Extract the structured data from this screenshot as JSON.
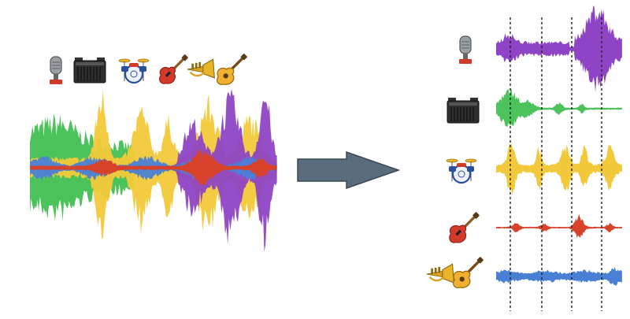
{
  "diagram": {
    "type": "audio-source-separation",
    "input": {
      "name": "mixed-waveform",
      "instrument_icons": [
        "microphone-icon",
        "amplifier-icon",
        "drum-kit-icon",
        "electric-guitar-icon",
        "trumpet-icon",
        "acoustic-guitar-icon"
      ]
    },
    "arrow": {
      "color": "#5a6b7b"
    },
    "outputs": [
      {
        "name": "vocals-track",
        "icons": [
          "microphone-icon"
        ],
        "color": "#8e44c4"
      },
      {
        "name": "bass-track",
        "icons": [
          "amplifier-icon"
        ],
        "color": "#4cc25a"
      },
      {
        "name": "drums-track",
        "icons": [
          "drum-kit-icon"
        ],
        "color": "#f2c93a"
      },
      {
        "name": "guitar-track",
        "icons": [
          "electric-guitar-icon"
        ],
        "color": "#d8422a"
      },
      {
        "name": "other-track",
        "icons": [
          "trumpet-icon",
          "acoustic-guitar-icon"
        ],
        "color": "#4a7fd6"
      }
    ],
    "beat_markers": 4
  }
}
